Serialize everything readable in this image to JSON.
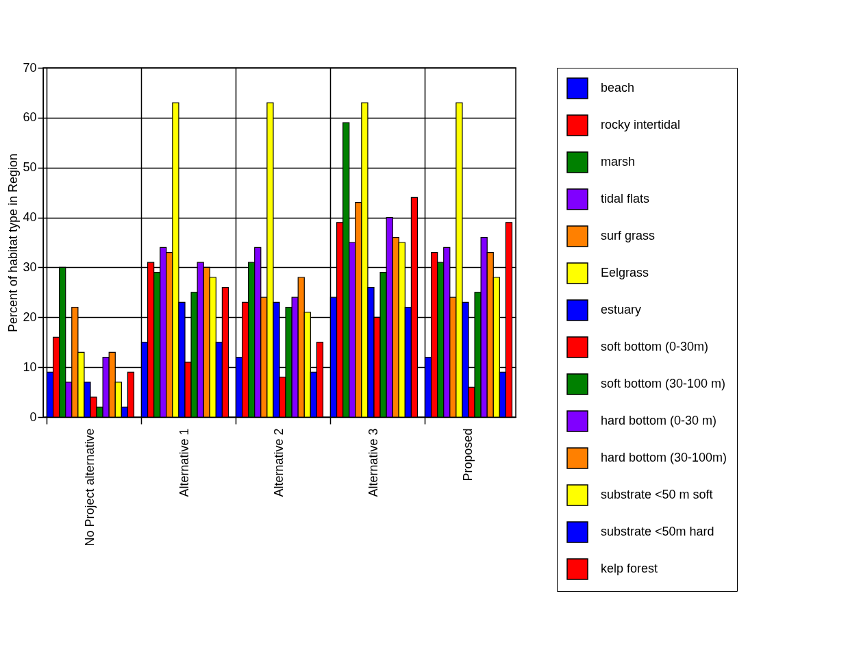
{
  "chart_data": {
    "type": "bar",
    "ylabel": "Percent of habitat type in Region",
    "categories": [
      "No Project alternative",
      "Alternative 1",
      "Alternative 2",
      "Alternative 3",
      "Proposed"
    ],
    "series": [
      {
        "name": "beach",
        "color": "#0000ff",
        "values": [
          9,
          15,
          12,
          24,
          12
        ]
      },
      {
        "name": "rocky intertidal",
        "color": "#ff0000",
        "values": [
          16,
          31,
          23,
          39,
          33
        ]
      },
      {
        "name": "marsh",
        "color": "#008000",
        "values": [
          30,
          29,
          31,
          59,
          31
        ]
      },
      {
        "name": "tidal flats",
        "color": "#8000ff",
        "values": [
          7,
          34,
          34,
          35,
          34
        ]
      },
      {
        "name": "surf grass",
        "color": "#ff8000",
        "values": [
          22,
          33,
          24,
          43,
          24
        ]
      },
      {
        "name": "Eelgrass",
        "color": "#ffff00",
        "values": [
          13,
          63,
          63,
          63,
          63
        ]
      },
      {
        "name": "estuary",
        "color": "#0000ff",
        "values": [
          7,
          23,
          23,
          26,
          23
        ]
      },
      {
        "name": "soft bottom (0-30m)",
        "color": "#ff0000",
        "values": [
          4,
          11,
          8,
          20,
          6
        ]
      },
      {
        "name": "soft bottom (30-100 m)",
        "color": "#008000",
        "values": [
          2,
          25,
          22,
          29,
          25
        ]
      },
      {
        "name": "hard bottom (0-30 m)",
        "color": "#8000ff",
        "values": [
          12,
          31,
          24,
          40,
          36
        ]
      },
      {
        "name": "hard bottom (30-100m)",
        "color": "#ff8000",
        "values": [
          13,
          30,
          28,
          36,
          33
        ]
      },
      {
        "name": "substrate <50 m soft",
        "color": "#ffff00",
        "values": [
          7,
          28,
          21,
          35,
          28
        ]
      },
      {
        "name": "substrate <50m hard",
        "color": "#0000ff",
        "values": [
          2,
          15,
          9,
          22,
          9
        ]
      },
      {
        "name": "kelp forest",
        "color": "#ff0000",
        "values": [
          9,
          26,
          15,
          44,
          39
        ]
      }
    ],
    "ylim": [
      0,
      70
    ],
    "yticks": [
      0,
      10,
      20,
      30,
      40,
      50,
      60,
      70
    ],
    "grid": true,
    "legend": "right"
  }
}
